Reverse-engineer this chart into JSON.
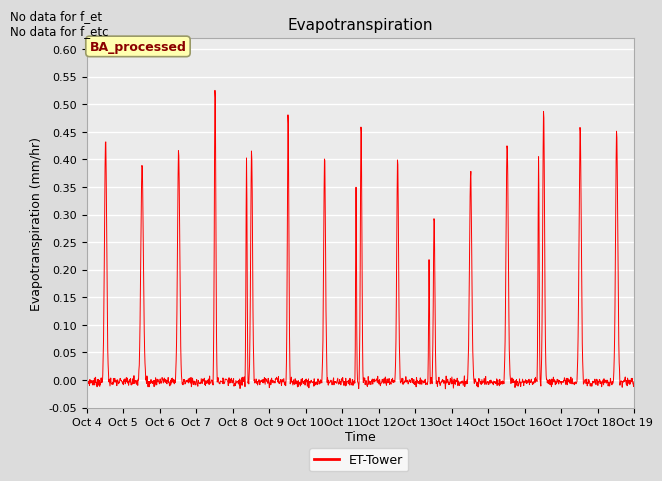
{
  "title": "Evapotranspiration",
  "ylabel": "Evapotranspiration (mm/hr)",
  "xlabel": "Time",
  "ylim": [
    -0.05,
    0.62
  ],
  "yticks": [
    -0.05,
    0.0,
    0.05,
    0.1,
    0.15,
    0.2,
    0.25,
    0.3,
    0.35,
    0.4,
    0.45,
    0.5,
    0.55,
    0.6
  ],
  "line_color": "red",
  "bg_color": "#dcdcdc",
  "plot_bg_color": "#ebebeb",
  "text_top_left": "No data for f_et\nNo data for f_etc",
  "legend_label": "ET-Tower",
  "watermark_text": "BA_processed",
  "x_tick_labels": [
    "Oct 4",
    "Oct 5",
    "Oct 6",
    "Oct 7",
    "Oct 8",
    "Oct 9",
    "Oct 10",
    "Oct 11",
    "Oct 12",
    "Oct 13",
    "Oct 14",
    "Oct 15",
    "Oct 16",
    "Oct 17",
    "Oct 18",
    "Oct 19"
  ],
  "num_days": 15,
  "points_per_day": 96,
  "day_peaks": [
    0.44,
    0.39,
    0.42,
    0.54,
    0.42,
    0.49,
    0.41,
    0.47,
    0.4,
    0.3,
    0.38,
    0.43,
    0.49,
    0.46,
    0.45
  ],
  "day_secondary_peaks": [
    0.0,
    0.0,
    0.0,
    0.0,
    0.41,
    0.0,
    0.0,
    0.35,
    0.0,
    0.22,
    0.0,
    0.0,
    0.41,
    0.0,
    0.0
  ],
  "peak_widths": [
    0.06,
    0.07,
    0.06,
    0.04,
    0.05,
    0.04,
    0.05,
    0.04,
    0.05,
    0.04,
    0.06,
    0.06,
    0.05,
    0.06,
    0.06
  ]
}
